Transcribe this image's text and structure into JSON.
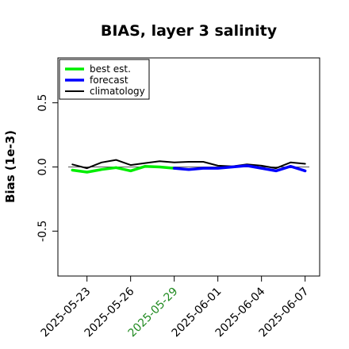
{
  "chart_data": {
    "type": "line",
    "title": "BIAS, layer 3 salinity",
    "xlabel": "",
    "ylabel": "Bias (1e-3)",
    "ylim": [
      -0.85,
      0.85
    ],
    "yticks": [
      -0.5,
      0.0,
      0.5
    ],
    "ytick_labels": [
      "-0.5",
      "0.0",
      "0.5"
    ],
    "x_range": [
      "2025-05-21",
      "2025-06-08"
    ],
    "xtick_labels": [
      "2025-05-23",
      "2025-05-26",
      "2025-05-29",
      "2025-06-01",
      "2025-06-04",
      "2025-06-07"
    ],
    "xtick_colors": [
      "#000000",
      "#000000",
      "#228B22",
      "#000000",
      "#000000",
      "#000000"
    ],
    "reference_line": 0.0,
    "grid": false,
    "legend_position": "top-left",
    "series": [
      {
        "name": "best est.",
        "color": "#00ee00",
        "x": [
          "2025-05-22",
          "2025-05-23",
          "2025-05-24",
          "2025-05-25",
          "2025-05-26",
          "2025-05-27",
          "2025-05-28",
          "2025-05-29"
        ],
        "values": [
          -0.025,
          -0.04,
          -0.02,
          -0.005,
          -0.03,
          0.005,
          0.0,
          -0.01
        ]
      },
      {
        "name": "forecast",
        "color": "#0000ff",
        "x": [
          "2025-05-29",
          "2025-05-30",
          "2025-05-31",
          "2025-06-01",
          "2025-06-02",
          "2025-06-03",
          "2025-06-04",
          "2025-06-05",
          "2025-06-06",
          "2025-06-07"
        ],
        "values": [
          -0.01,
          -0.02,
          -0.01,
          -0.01,
          0.0,
          0.01,
          -0.01,
          -0.03,
          0.005,
          -0.03
        ]
      },
      {
        "name": "climatology",
        "color": "#000000",
        "x": [
          "2025-05-22",
          "2025-05-23",
          "2025-05-24",
          "2025-05-25",
          "2025-05-26",
          "2025-05-27",
          "2025-05-28",
          "2025-05-29",
          "2025-05-30",
          "2025-05-31",
          "2025-06-01",
          "2025-06-02",
          "2025-06-03",
          "2025-06-04",
          "2025-06-05",
          "2025-06-06",
          "2025-06-07"
        ],
        "values": [
          0.02,
          -0.01,
          0.035,
          0.055,
          0.015,
          0.03,
          0.045,
          0.035,
          0.04,
          0.04,
          0.01,
          0.005,
          0.02,
          0.01,
          -0.01,
          0.035,
          0.025
        ]
      }
    ]
  }
}
